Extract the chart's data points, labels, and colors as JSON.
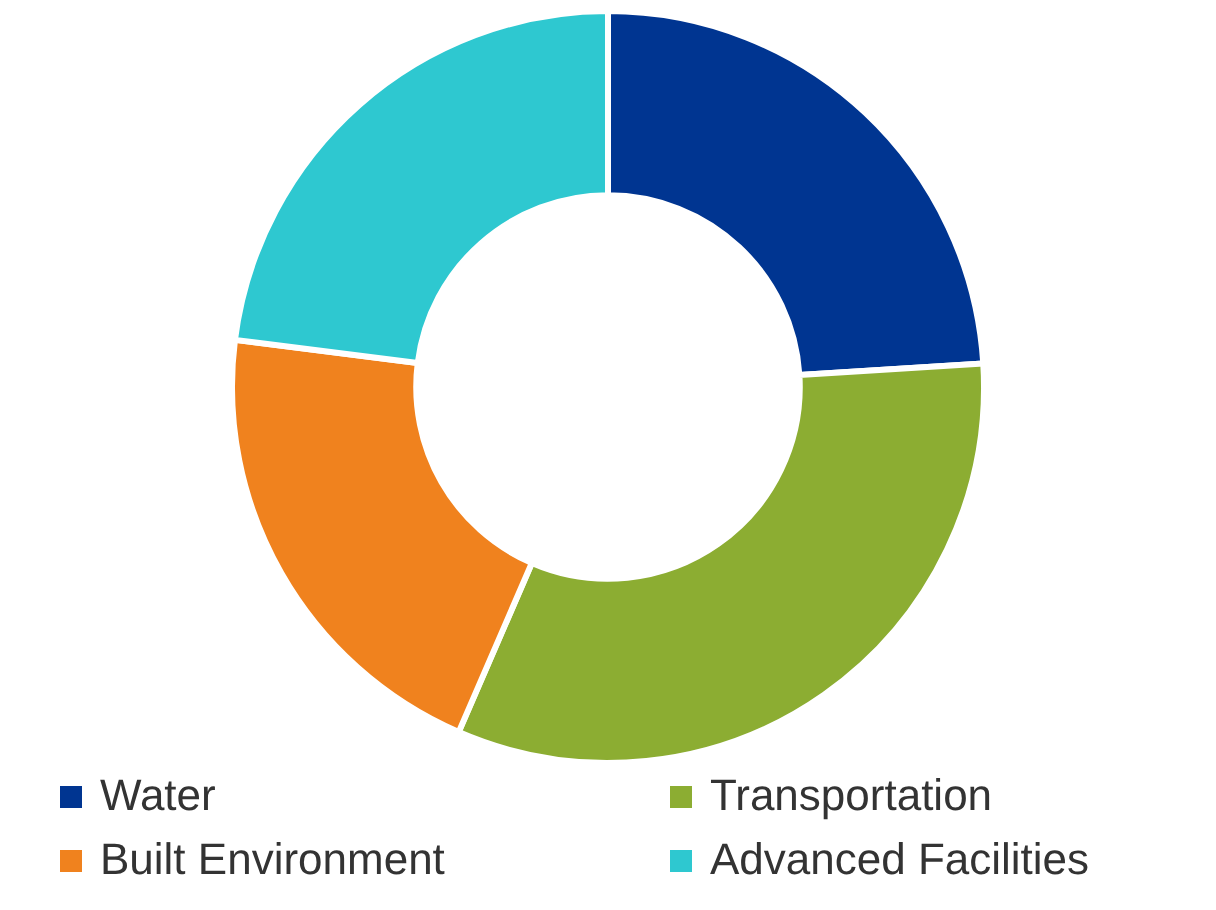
{
  "chart_data": {
    "type": "donut",
    "categories": [
      "Water",
      "Transportation",
      "Built Environment",
      "Advanced Facilities"
    ],
    "values": [
      24,
      32.5,
      20.5,
      23
    ],
    "colors": [
      "#003591",
      "#8cad32",
      "#f0821e",
      "#2ec8d0"
    ],
    "legend": "bottom"
  }
}
